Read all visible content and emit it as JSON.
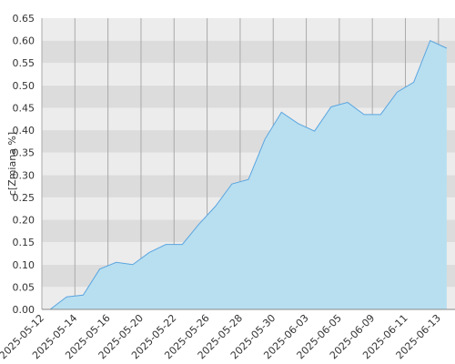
{
  "chart_data": {
    "type": "area",
    "y_label": "c[Zmiana %]",
    "categories": [
      "2025-05-12",
      null,
      "2025-05-14",
      null,
      "2025-05-16",
      null,
      "2025-05-20",
      null,
      "2025-05-22",
      null,
      "2025-05-26",
      null,
      "2025-05-28",
      null,
      "2025-05-30",
      null,
      "2025-06-03",
      null,
      "2025-06-05",
      null,
      "2025-06-09",
      null,
      "2025-06-11",
      null,
      "2025-06-13"
    ],
    "values": [
      0.0,
      0.028,
      0.032,
      0.09,
      0.105,
      0.1,
      0.127,
      0.145,
      0.145,
      0.19,
      0.23,
      0.28,
      0.29,
      0.38,
      0.44,
      0.415,
      0.398,
      0.452,
      0.462,
      0.435,
      0.435,
      0.485,
      0.507,
      0.6,
      0.583
    ],
    "color": "#5aa5e0",
    "fill": "#b8dff0",
    "ylim": [
      0,
      0.65
    ],
    "yticks": [
      {
        "value": 0,
        "label": "0.00"
      },
      {
        "value": 0.05,
        "label": "0.05"
      },
      {
        "value": 0.1,
        "label": "0.10"
      },
      {
        "value": 0.15,
        "label": "0.15"
      },
      {
        "value": 0.2,
        "label": "0.20"
      },
      {
        "value": 0.25,
        "label": "0.25"
      },
      {
        "value": 0.3,
        "label": "0.30"
      },
      {
        "value": 0.35,
        "label": "0.35"
      },
      {
        "value": 0.4,
        "label": "0.40"
      },
      {
        "value": 0.45,
        "label": "0.45"
      },
      {
        "value": 0.5,
        "label": "0.50"
      },
      {
        "value": 0.55,
        "label": "0.55"
      },
      {
        "value": 0.6,
        "label": "0.60"
      },
      {
        "value": 0.65,
        "label": "0.65"
      }
    ],
    "grid": true
  }
}
